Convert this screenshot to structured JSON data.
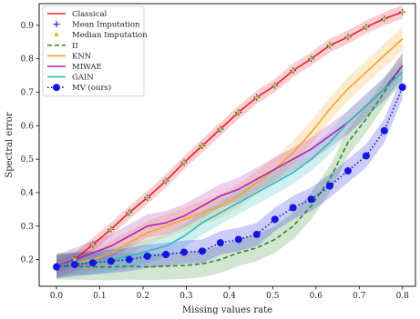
{
  "chart_data": {
    "type": "line",
    "title": "",
    "xlabel": "Missing values rate",
    "ylabel": "Spectral error",
    "xlim": [
      -0.04,
      0.83
    ],
    "ylim": [
      0.12,
      0.965
    ],
    "xticks": [
      "0.0",
      "0.1",
      "0.2",
      "0.3",
      "0.4",
      "0.5",
      "0.6",
      "0.7",
      "0.8"
    ],
    "yticks": [
      "0.2",
      "0.3",
      "0.4",
      "0.5",
      "0.6",
      "0.7",
      "0.8",
      "0.9"
    ],
    "xtick_values": [
      0.0,
      0.1,
      0.2,
      0.3,
      0.4,
      0.5,
      0.6,
      0.7,
      0.8
    ],
    "ytick_values": [
      0.2,
      0.3,
      0.4,
      0.5,
      0.6,
      0.7,
      0.8,
      0.9
    ],
    "grid": false,
    "legend_position": "top-left",
    "x": [
      0.0,
      0.042,
      0.084,
      0.126,
      0.168,
      0.21,
      0.253,
      0.295,
      0.337,
      0.379,
      0.421,
      0.463,
      0.505,
      0.547,
      0.589,
      0.632,
      0.674,
      0.716,
      0.758,
      0.8
    ],
    "series": [
      {
        "name": "Classical",
        "color": "#e8202a",
        "style": "solid",
        "marker": "none",
        "values": [
          0.18,
          0.2,
          0.245,
          0.29,
          0.34,
          0.385,
          0.435,
          0.49,
          0.54,
          0.59,
          0.64,
          0.685,
          0.72,
          0.765,
          0.8,
          0.84,
          0.865,
          0.895,
          0.92,
          0.94
        ],
        "band": 0.02
      },
      {
        "name": "Mean Imputation",
        "color": "#1f2fd0",
        "style": "none",
        "marker": "plus",
        "values": [
          0.18,
          0.2,
          0.245,
          0.29,
          0.34,
          0.385,
          0.435,
          0.49,
          0.54,
          0.59,
          0.64,
          0.685,
          0.72,
          0.765,
          0.8,
          0.84,
          0.865,
          0.895,
          0.92,
          0.94
        ]
      },
      {
        "name": "Median Imputation",
        "color": "#c9c21e",
        "style": "none",
        "marker": "dot",
        "values": [
          0.18,
          0.2,
          0.245,
          0.29,
          0.34,
          0.385,
          0.435,
          0.49,
          0.54,
          0.59,
          0.64,
          0.685,
          0.72,
          0.765,
          0.8,
          0.84,
          0.865,
          0.895,
          0.92,
          0.94
        ]
      },
      {
        "name": "II",
        "color": "#2f8a2f",
        "style": "dashed",
        "marker": "none",
        "values": [
          0.18,
          0.18,
          0.178,
          0.178,
          0.18,
          0.178,
          0.18,
          0.182,
          0.187,
          0.2,
          0.22,
          0.235,
          0.26,
          0.3,
          0.36,
          0.44,
          0.55,
          0.62,
          0.7,
          0.78
        ],
        "band": 0.04
      },
      {
        "name": "KNN",
        "color": "#f5a52a",
        "style": "solid",
        "marker": "none",
        "values": [
          0.18,
          0.19,
          0.2,
          0.22,
          0.25,
          0.28,
          0.3,
          0.32,
          0.34,
          0.36,
          0.39,
          0.43,
          0.47,
          0.52,
          0.58,
          0.65,
          0.71,
          0.76,
          0.81,
          0.86
        ],
        "band": 0.035
      },
      {
        "name": "MIWAE",
        "color": "#b020b0",
        "style": "solid",
        "marker": "none",
        "values": [
          0.18,
          0.2,
          0.22,
          0.24,
          0.27,
          0.3,
          0.31,
          0.33,
          0.36,
          0.39,
          0.41,
          0.44,
          0.47,
          0.5,
          0.53,
          0.57,
          0.61,
          0.66,
          0.71,
          0.78
        ],
        "band": 0.035
      },
      {
        "name": "GAIN",
        "color": "#2bbcbc",
        "style": "solid",
        "marker": "none",
        "values": [
          0.18,
          0.19,
          0.19,
          0.2,
          0.21,
          0.225,
          0.24,
          0.27,
          0.31,
          0.34,
          0.37,
          0.4,
          0.43,
          0.46,
          0.5,
          0.55,
          0.61,
          0.66,
          0.71,
          0.76
        ],
        "band": 0.035
      },
      {
        "name": "MV (ours)",
        "color": "#1515e0",
        "style": "dotted",
        "marker": "circle",
        "values": [
          0.178,
          0.185,
          0.19,
          0.195,
          0.2,
          0.21,
          0.215,
          0.222,
          0.225,
          0.25,
          0.26,
          0.275,
          0.32,
          0.355,
          0.38,
          0.42,
          0.465,
          0.51,
          0.585,
          0.715
        ],
        "band": 0.035
      }
    ]
  }
}
